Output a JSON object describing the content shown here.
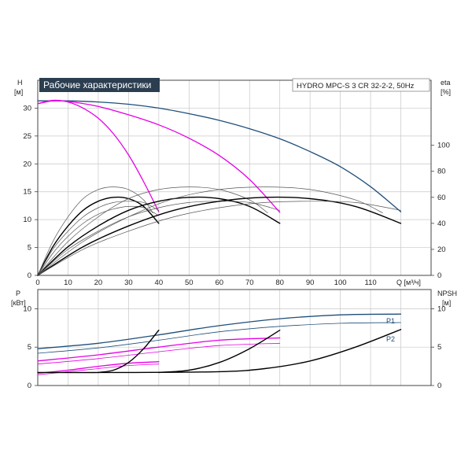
{
  "chart_data": [
    {
      "type": "line",
      "title": "Рабочие характеристики",
      "subtitle": "HYDRO MPC-S 3 CR 32-2-2, 50Hz",
      "y_left_label": [
        "H",
        "[м]"
      ],
      "y_right_label": [
        "eta",
        "[%]"
      ],
      "x_label": "Q [м³/ч]",
      "x_range": [
        0,
        130
      ],
      "y_left_range": [
        0,
        35
      ],
      "y_right_range": [
        0,
        150
      ],
      "x_ticks": [
        "0",
        "10",
        "20",
        "30",
        "40",
        "50",
        "60",
        "70",
        "80",
        "90",
        "100",
        "110"
      ],
      "y_left_ticks": [
        "0",
        "5",
        "10",
        "15",
        "20",
        "25",
        "30"
      ],
      "y_right_ticks": [
        "0",
        "20",
        "40",
        "60",
        "80",
        "100"
      ],
      "grid": true,
      "colors": {
        "system": "#1f4e79",
        "pump": "#e600e6",
        "eta": "#000000",
        "eta_thin": "#555555"
      },
      "series": [
        {
          "name": "H 3 pumps",
          "kind": "system",
          "x": [
            0,
            10,
            20,
            30,
            40,
            50,
            60,
            70,
            80,
            90,
            100,
            110,
            120
          ],
          "y": [
            31.3,
            31.3,
            31.1,
            30.7,
            30.0,
            29.0,
            27.8,
            26.3,
            24.5,
            22.2,
            19.5,
            15.9,
            11.4
          ]
        },
        {
          "name": "H 2 pumps",
          "kind": "pump",
          "x": [
            0,
            5,
            10,
            20,
            30,
            40,
            50,
            60,
            70,
            80
          ],
          "y": [
            30.8,
            31.3,
            31.2,
            30.3,
            28.8,
            27.0,
            24.6,
            21.5,
            17.2,
            11.3
          ]
        },
        {
          "name": "H 1 pump",
          "kind": "pump",
          "x": [
            0,
            5,
            10,
            15,
            20,
            25,
            30,
            35,
            40
          ],
          "y": [
            30.8,
            31.4,
            31.1,
            30.0,
            28.2,
            25.4,
            21.6,
            16.8,
            11.4
          ]
        },
        {
          "name": "eta 1 pump",
          "kind": "eta",
          "x": [
            0,
            5,
            10,
            15,
            20,
            25,
            30,
            35,
            40
          ],
          "y": [
            0,
            22,
            38,
            50,
            57,
            60,
            59,
            53,
            40
          ]
        },
        {
          "name": "eta 1 pump max",
          "kind": "eta_thin",
          "x": [
            0,
            5,
            10,
            15,
            20,
            25,
            30,
            35,
            38
          ],
          "y": [
            0,
            26,
            45,
            59,
            66,
            68,
            66,
            58,
            48
          ]
        },
        {
          "name": "eta 1 pump lo a",
          "kind": "eta_thin",
          "x": [
            0,
            5,
            10,
            15,
            20,
            25,
            30,
            35,
            40
          ],
          "y": [
            0,
            20,
            34,
            45,
            52,
            56,
            57,
            56,
            50
          ]
        },
        {
          "name": "eta 1 pump lo b",
          "kind": "eta_thin",
          "x": [
            0,
            5,
            10,
            15,
            20,
            25,
            30,
            35,
            40
          ],
          "y": [
            0,
            17,
            30,
            40,
            47,
            51,
            53,
            52,
            46
          ]
        },
        {
          "name": "eta 2 pumps",
          "kind": "eta",
          "x": [
            0,
            10,
            20,
            30,
            40,
            50,
            60,
            70,
            80
          ],
          "y": [
            0,
            22,
            38,
            50,
            57,
            60,
            59,
            53,
            40
          ]
        },
        {
          "name": "eta 2 pumps max",
          "kind": "eta_thin",
          "x": [
            0,
            10,
            20,
            30,
            40,
            50,
            60,
            70,
            76
          ],
          "y": [
            0,
            26,
            45,
            59,
            66,
            68,
            66,
            58,
            48
          ]
        },
        {
          "name": "eta 2 pumps lo a",
          "kind": "eta_thin",
          "x": [
            0,
            10,
            20,
            30,
            40,
            50,
            60,
            70,
            80
          ],
          "y": [
            0,
            20,
            34,
            45,
            52,
            56,
            57,
            56,
            50
          ]
        },
        {
          "name": "eta 3 pumps",
          "kind": "eta",
          "x": [
            0,
            15,
            30,
            45,
            60,
            75,
            90,
            105,
            120
          ],
          "y": [
            0,
            22,
            38,
            50,
            57,
            60,
            59,
            53,
            40
          ]
        },
        {
          "name": "eta 3 pumps max",
          "kind": "eta_thin",
          "x": [
            0,
            15,
            30,
            45,
            60,
            75,
            90,
            105,
            114
          ],
          "y": [
            0,
            26,
            45,
            59,
            66,
            68,
            66,
            58,
            48
          ]
        },
        {
          "name": "eta 3 pumps lo a",
          "kind": "eta_thin",
          "x": [
            0,
            15,
            30,
            45,
            60,
            75,
            90,
            105,
            120
          ],
          "y": [
            0,
            20,
            34,
            45,
            52,
            56,
            57,
            56,
            50
          ]
        }
      ]
    },
    {
      "type": "line",
      "y_left_label": [
        "P",
        "[кВт]"
      ],
      "y_right_label": [
        "NPSH",
        "[м]"
      ],
      "x_range": [
        0,
        130
      ],
      "y_left_range": [
        0,
        12.5
      ],
      "y_right_range": [
        0,
        12.5
      ],
      "y_left_ticks": [
        "0",
        "5",
        "10"
      ],
      "y_right_ticks": [
        "0",
        "5",
        "10"
      ],
      "grid": true,
      "series_labels": [
        "P1",
        "P2"
      ],
      "series": [
        {
          "name": "P1",
          "kind": "system",
          "x": [
            0,
            20,
            40,
            60,
            80,
            100,
            120
          ],
          "y": [
            4.8,
            5.5,
            6.6,
            7.8,
            8.7,
            9.2,
            9.3
          ]
        },
        {
          "name": "P2",
          "kind": "system_thin",
          "x": [
            0,
            20,
            40,
            60,
            80,
            100,
            120
          ],
          "y": [
            4.2,
            4.9,
            5.9,
            7.0,
            7.7,
            8.1,
            8.2
          ]
        },
        {
          "name": "P1 2 pumps",
          "kind": "pump",
          "x": [
            0,
            20,
            40,
            60,
            80
          ],
          "y": [
            3.2,
            4.0,
            5.0,
            5.9,
            6.2
          ]
        },
        {
          "name": "P2 2 pumps",
          "kind": "pump_thin",
          "x": [
            0,
            20,
            40,
            60,
            80
          ],
          "y": [
            2.8,
            3.5,
            4.4,
            5.2,
            5.5
          ]
        },
        {
          "name": "P1 1 pump",
          "kind": "pump",
          "x": [
            0,
            10,
            20,
            30,
            40
          ],
          "y": [
            1.6,
            2.0,
            2.5,
            2.9,
            3.1
          ]
        },
        {
          "name": "P2 1 pump",
          "kind": "pump_thin",
          "x": [
            0,
            10,
            20,
            30,
            40
          ],
          "y": [
            1.4,
            1.8,
            2.2,
            2.6,
            2.8
          ]
        },
        {
          "name": "NPSH 3 pumps",
          "kind": "eta",
          "x": [
            0,
            30,
            60,
            75,
            90,
            105,
            120
          ],
          "y": [
            1.7,
            1.7,
            1.8,
            2.2,
            3.2,
            5.0,
            7.3
          ]
        },
        {
          "name": "NPSH 2 pumps",
          "kind": "eta",
          "x": [
            40,
            50,
            60,
            70,
            80
          ],
          "y": [
            1.7,
            2.0,
            3.0,
            4.8,
            7.2
          ]
        },
        {
          "name": "NPSH 1 pump",
          "kind": "eta",
          "x": [
            20,
            25,
            30,
            35,
            40
          ],
          "y": [
            1.7,
            2.0,
            3.0,
            4.8,
            7.2
          ]
        }
      ]
    }
  ]
}
